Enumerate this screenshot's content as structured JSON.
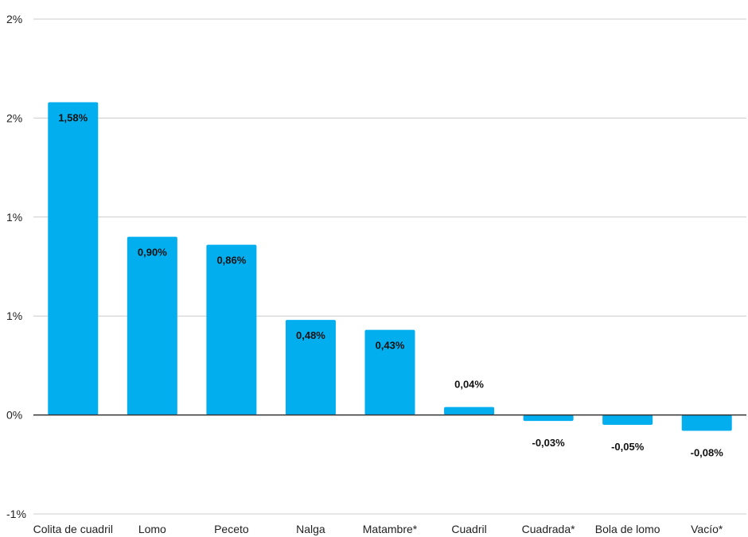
{
  "chart_data": {
    "type": "bar",
    "categories": [
      "Colita de cuadril",
      "Lomo",
      "Peceto",
      "Nalga",
      "Matambre*",
      "Cuadril",
      "Cuadrada*",
      "Bola de lomo",
      "Vacío*"
    ],
    "values": [
      1.58,
      0.9,
      0.86,
      0.48,
      0.43,
      0.04,
      -0.03,
      -0.05,
      -0.08
    ],
    "data_labels": [
      "1,58%",
      "0,90%",
      "0,86%",
      "0,48%",
      "0,43%",
      "0,04%",
      "-0,03%",
      "-0,05%",
      "-0,08%"
    ],
    "y_ticks": [
      -0.5,
      0,
      0.5,
      1.0,
      1.5,
      2.0
    ],
    "y_tick_labels": [
      "-1%",
      "0%",
      "1%",
      "1%",
      "2%",
      "2%"
    ],
    "ylim": [
      -0.5,
      2.0
    ],
    "grid": true,
    "legend": "none",
    "colors": {
      "bar": "#03AEEF",
      "grid": "#CCCCCC",
      "zero_line": "#333333"
    }
  }
}
